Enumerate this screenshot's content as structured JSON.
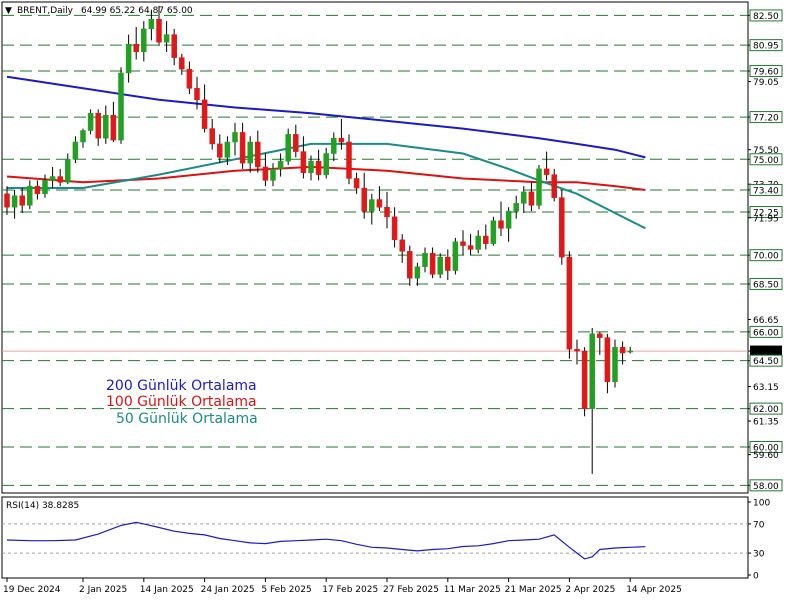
{
  "header": {
    "triangle": "▼",
    "symbol_label": "BRENT,Daily",
    "ohlc_label": "64.99 65.22 64.87 65.00"
  },
  "rsi_header": {
    "label": "RSI(14) 38.8285"
  },
  "legend": [
    {
      "text": "200 Günlük Ortalama",
      "color": "#1a1acc"
    },
    {
      "text": "100 Günlük Ortalama",
      "color": "#dd1111"
    },
    {
      "text": "50 Günlük Ortalama",
      "color": "#1a8a8a"
    }
  ],
  "colors": {
    "bull": "#22a022",
    "bear": "#e01818",
    "ma200": "#1a1acc",
    "ma100": "#dd1111",
    "ma50": "#1a8a8a",
    "level_line": "#1f7a2e",
    "rsi_line": "#1a1acc"
  },
  "chart_data": [
    {
      "type": "candlestick",
      "symbol": "BRENT",
      "timeframe": "Daily",
      "ylim": [
        57.6,
        83.2
      ],
      "price_axis_ticks": [
        82.5,
        80.95,
        79.6,
        79.05,
        77.2,
        75.5,
        75.0,
        73.7,
        73.4,
        72.25,
        71.95,
        70.0,
        68.5,
        66.65,
        66.0,
        65.0,
        64.5,
        63.15,
        62.0,
        61.35,
        60.0,
        59.6,
        58.0
      ],
      "price_axis_labels": [
        "82.50",
        "80.95",
        "79.60",
        "79.05",
        "77.20",
        "75.50",
        "75.00",
        "73.70",
        "73.40",
        "72.25",
        "71.95",
        "70.00",
        "68.50",
        "66.65",
        "66.00",
        "65.00",
        "64.50",
        "63.15",
        "62.00",
        "61.35",
        "60.00",
        "59.60",
        "58.00"
      ],
      "horizontal_levels": [
        82.5,
        80.95,
        79.6,
        77.2,
        75.0,
        73.4,
        72.25,
        70.0,
        68.5,
        66.0,
        64.5,
        62.0,
        60.0,
        58.0
      ],
      "boxed_labels": [
        82.5,
        80.95,
        79.6,
        77.2,
        75.0,
        73.4,
        72.25,
        70.0,
        68.5,
        66.0,
        64.5,
        62.0,
        60.0,
        58.0
      ],
      "current_price": 65.0,
      "date_ticks": [
        {
          "index": 0,
          "label": "19 Dec 2024"
        },
        {
          "index": 10,
          "label": "2 Jan 2025"
        },
        {
          "index": 18,
          "label": "14 Jan 2025"
        },
        {
          "index": 26,
          "label": "24 Jan 2025"
        },
        {
          "index": 34,
          "label": "5 Feb 2025"
        },
        {
          "index": 42,
          "label": "17 Feb 2025"
        },
        {
          "index": 50,
          "label": "27 Feb 2025"
        },
        {
          "index": 58,
          "label": "11 Mar 2025"
        },
        {
          "index": 66,
          "label": "21 Mar 2025"
        },
        {
          "index": 74,
          "label": "2 Apr 2025"
        },
        {
          "index": 82,
          "label": "14 Apr 2025"
        }
      ],
      "candles": [
        [
          73.2,
          73.6,
          72.1,
          72.5
        ],
        [
          72.5,
          73.4,
          71.9,
          73.1
        ],
        [
          73.1,
          73.5,
          72.2,
          72.6
        ],
        [
          72.6,
          73.9,
          72.4,
          73.6
        ],
        [
          73.6,
          73.9,
          72.9,
          73.2
        ],
        [
          73.2,
          74.2,
          73.0,
          73.9
        ],
        [
          73.9,
          74.6,
          73.5,
          74.1
        ],
        [
          74.1,
          74.5,
          73.6,
          73.8
        ],
        [
          73.8,
          75.3,
          73.7,
          75.0
        ],
        [
          75.0,
          76.2,
          74.8,
          75.9
        ],
        [
          75.9,
          76.6,
          75.6,
          76.5
        ],
        [
          76.5,
          77.6,
          76.3,
          77.4
        ],
        [
          77.4,
          77.6,
          75.7,
          76.1
        ],
        [
          76.1,
          77.8,
          75.8,
          77.3
        ],
        [
          77.3,
          78.0,
          75.9,
          76.0
        ],
        [
          76.0,
          79.8,
          75.8,
          79.5
        ],
        [
          79.5,
          81.5,
          79.0,
          81.0
        ],
        [
          81.0,
          81.9,
          80.2,
          80.6
        ],
        [
          80.6,
          82.2,
          80.1,
          81.8
        ],
        [
          81.8,
          82.8,
          81.2,
          82.3
        ],
        [
          82.3,
          83.0,
          80.9,
          81.1
        ],
        [
          81.1,
          82.2,
          80.6,
          81.5
        ],
        [
          81.5,
          81.8,
          79.9,
          80.3
        ],
        [
          80.3,
          80.5,
          79.4,
          79.7
        ],
        [
          79.7,
          80.1,
          78.4,
          78.7
        ],
        [
          78.7,
          79.3,
          77.6,
          78.1
        ],
        [
          78.1,
          78.9,
          76.4,
          76.6
        ],
        [
          76.6,
          77.1,
          75.5,
          75.8
        ],
        [
          75.8,
          76.3,
          74.8,
          75.1
        ],
        [
          75.1,
          76.2,
          74.7,
          75.9
        ],
        [
          75.9,
          76.9,
          75.2,
          76.4
        ],
        [
          76.4,
          76.9,
          74.5,
          74.8
        ],
        [
          74.8,
          76.2,
          74.3,
          75.9
        ],
        [
          75.9,
          76.5,
          74.3,
          74.6
        ],
        [
          74.6,
          75.3,
          73.6,
          73.9
        ],
        [
          73.9,
          74.8,
          73.6,
          74.5
        ],
        [
          74.5,
          75.3,
          74.1,
          74.9
        ],
        [
          74.9,
          76.6,
          74.7,
          76.3
        ],
        [
          76.3,
          76.8,
          75.1,
          75.4
        ],
        [
          75.4,
          76.2,
          74.0,
          74.3
        ],
        [
          74.3,
          75.2,
          73.9,
          74.9
        ],
        [
          74.9,
          75.5,
          73.9,
          74.2
        ],
        [
          74.2,
          75.6,
          74.0,
          75.3
        ],
        [
          75.3,
          76.4,
          74.9,
          76.1
        ],
        [
          76.1,
          77.1,
          75.5,
          75.9
        ],
        [
          75.9,
          76.3,
          73.7,
          74.0
        ],
        [
          74.0,
          74.3,
          73.2,
          73.5
        ],
        [
          73.5,
          74.3,
          71.9,
          72.3
        ],
        [
          72.3,
          73.2,
          71.6,
          72.9
        ],
        [
          72.9,
          73.6,
          72.3,
          72.5
        ],
        [
          72.5,
          73.3,
          71.4,
          72.0
        ],
        [
          72.0,
          72.5,
          70.4,
          70.8
        ],
        [
          70.8,
          71.1,
          69.6,
          70.2
        ],
        [
          70.2,
          70.5,
          68.4,
          68.8
        ],
        [
          68.8,
          69.6,
          68.4,
          69.4
        ],
        [
          69.4,
          70.4,
          69.1,
          70.1
        ],
        [
          70.1,
          70.4,
          68.8,
          69.0
        ],
        [
          69.0,
          70.1,
          68.8,
          69.9
        ],
        [
          69.9,
          70.3,
          68.7,
          69.2
        ],
        [
          69.2,
          70.9,
          69.0,
          70.7
        ],
        [
          70.7,
          71.3,
          70.0,
          70.5
        ],
        [
          70.5,
          71.1,
          70.0,
          70.3
        ],
        [
          70.3,
          71.3,
          70.1,
          71.0
        ],
        [
          71.0,
          71.6,
          70.3,
          70.6
        ],
        [
          70.6,
          72.0,
          70.5,
          71.8
        ],
        [
          71.8,
          72.8,
          71.0,
          71.4
        ],
        [
          71.4,
          72.5,
          70.7,
          72.3
        ],
        [
          72.3,
          73.1,
          71.9,
          72.7
        ],
        [
          72.7,
          73.6,
          72.2,
          73.3
        ],
        [
          73.3,
          73.8,
          72.3,
          72.6
        ],
        [
          72.6,
          74.7,
          72.4,
          74.5
        ],
        [
          74.5,
          75.4,
          73.9,
          74.2
        ],
        [
          74.2,
          74.5,
          72.8,
          73.0
        ],
        [
          73.0,
          73.4,
          69.5,
          69.9
        ],
        [
          69.9,
          70.2,
          64.6,
          65.1
        ],
        [
          65.1,
          65.6,
          64.3,
          65.0
        ],
        [
          65.0,
          65.2,
          61.6,
          62.0
        ],
        [
          62.0,
          66.2,
          58.6,
          65.9
        ],
        [
          65.9,
          66.0,
          64.8,
          65.7
        ],
        [
          65.7,
          65.9,
          62.8,
          63.4
        ],
        [
          63.4,
          65.6,
          63.1,
          65.2
        ],
        [
          65.2,
          65.5,
          64.3,
          64.9
        ],
        [
          64.99,
          65.22,
          64.87,
          65.0
        ]
      ],
      "series": [
        {
          "name": "200 Günlük Ortalama",
          "x": [
            0,
            10,
            20,
            30,
            40,
            50,
            60,
            70,
            75,
            80,
            84
          ],
          "values": [
            79.3,
            78.7,
            78.1,
            77.7,
            77.4,
            77.0,
            76.6,
            76.1,
            75.8,
            75.5,
            75.1
          ]
        },
        {
          "name": "100 Günlük Ortalama",
          "x": [
            0,
            10,
            20,
            30,
            40,
            50,
            60,
            70,
            75,
            80,
            84
          ],
          "values": [
            74.1,
            73.8,
            74.0,
            74.4,
            74.6,
            74.4,
            74.0,
            73.8,
            73.8,
            73.6,
            73.4
          ]
        },
        {
          "name": "50 Günlük Ortalama",
          "x": [
            0,
            10,
            20,
            30,
            40,
            50,
            60,
            66,
            70,
            75,
            80,
            84
          ],
          "values": [
            73.5,
            73.5,
            74.2,
            75.0,
            75.8,
            75.8,
            75.3,
            74.5,
            73.9,
            73.2,
            72.2,
            71.4
          ]
        }
      ]
    },
    {
      "type": "line",
      "name": "RSI(14)",
      "ylim": [
        0,
        100
      ],
      "ticks": [
        100,
        70,
        30,
        0
      ],
      "tick_labels": [
        "100",
        "70",
        "30",
        "0"
      ],
      "levels": [
        70,
        30
      ],
      "last_value": 38.8285,
      "x": [
        0,
        3,
        6,
        9,
        12,
        15,
        17,
        18,
        20,
        22,
        24,
        26,
        28,
        30,
        32,
        34,
        36,
        38,
        40,
        42,
        44,
        46,
        48,
        50,
        52,
        54,
        56,
        58,
        60,
        62,
        64,
        66,
        68,
        70,
        72,
        74,
        75,
        76,
        77,
        78,
        80,
        82,
        84
      ],
      "values": [
        48,
        47,
        47,
        48,
        56,
        68,
        72,
        70,
        65,
        60,
        57,
        55,
        50,
        47,
        44,
        43,
        46,
        47,
        48,
        49,
        47,
        42,
        38,
        37,
        35,
        33,
        35,
        36,
        39,
        40,
        43,
        47,
        48,
        49,
        55,
        38,
        30,
        22,
        25,
        35,
        37,
        38,
        38.8285
      ]
    }
  ]
}
